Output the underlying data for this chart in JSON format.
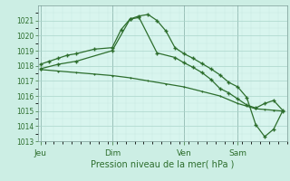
{
  "background_color": "#cceee4",
  "plot_bg_color": "#d8f5ee",
  "grid_color_major": "#aad4ca",
  "grid_color_minor": "#c8e8e0",
  "line_color": "#2d6e2d",
  "xlabel": "Pression niveau de la mer( hPa )",
  "ylim": [
    1013,
    1022
  ],
  "yticks": [
    1013,
    1014,
    1015,
    1016,
    1017,
    1018,
    1019,
    1020,
    1021
  ],
  "xtick_labels": [
    "Jeu",
    "Dim",
    "Ven",
    "Sam"
  ],
  "xtick_positions": [
    0,
    8,
    16,
    22
  ],
  "vline_positions": [
    0,
    8,
    16,
    22
  ],
  "xlim": [
    -0.3,
    27.5
  ],
  "series1_x": [
    0,
    1,
    2,
    3,
    4,
    6,
    8,
    9,
    10,
    11,
    12,
    13,
    14,
    15,
    16,
    17,
    18,
    19,
    20,
    21,
    22,
    23,
    24,
    25,
    26,
    27
  ],
  "series1_y": [
    1018.1,
    1018.3,
    1018.5,
    1018.7,
    1018.8,
    1019.1,
    1019.2,
    1020.4,
    1021.1,
    1021.3,
    1021.4,
    1021.0,
    1020.3,
    1019.2,
    1018.8,
    1018.5,
    1018.15,
    1017.8,
    1017.4,
    1016.9,
    1016.6,
    1015.9,
    1014.1,
    1013.3,
    1013.8,
    1015.0
  ],
  "series2_x": [
    0,
    2,
    4,
    8,
    10,
    11,
    13,
    15,
    16,
    17,
    18,
    19,
    20,
    21,
    22,
    23,
    24,
    25,
    26,
    27
  ],
  "series2_y": [
    1017.8,
    1018.1,
    1018.3,
    1019.0,
    1021.1,
    1021.2,
    1018.85,
    1018.55,
    1018.2,
    1017.9,
    1017.55,
    1017.1,
    1016.5,
    1016.2,
    1015.8,
    1015.4,
    1015.2,
    1015.5,
    1015.7,
    1015.05
  ],
  "series3_x": [
    0,
    2,
    4,
    6,
    8,
    10,
    12,
    14,
    16,
    18,
    20,
    22,
    24,
    25,
    26,
    27
  ],
  "series3_y": [
    1017.75,
    1017.65,
    1017.55,
    1017.45,
    1017.35,
    1017.2,
    1017.0,
    1016.8,
    1016.6,
    1016.3,
    1016.0,
    1015.5,
    1015.15,
    1015.1,
    1015.05,
    1015.0
  ],
  "ylabel_fontsize": 5.5,
  "xlabel_fontsize": 7,
  "xtick_fontsize": 6.5,
  "ytick_fontsize": 5.5
}
